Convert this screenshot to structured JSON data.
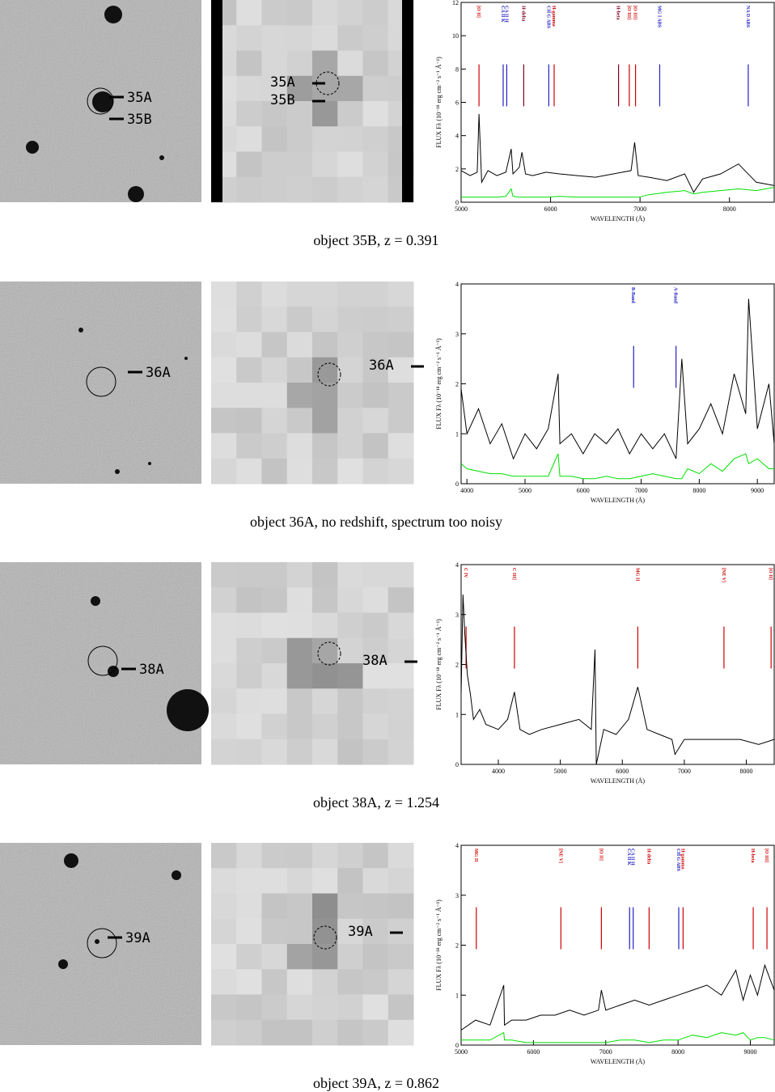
{
  "panels": [
    {
      "caption": "object 35B, z = 0.391",
      "finder_labels": [
        "35A",
        "35B"
      ],
      "zoom_labels": [
        "35A",
        "35B"
      ],
      "spectrum": {
        "xlabel": "WAVELENGTH (Å)",
        "ylabel": "FLUX Fλ (10⁻¹⁸ erg cm⁻² s⁻¹ Å⁻¹)",
        "xlim": [
          5000,
          8500
        ],
        "ylim": [
          0,
          12
        ],
        "xticks": [
          5000,
          6000,
          7000,
          8000
        ],
        "yticks": [
          0,
          2,
          4,
          6,
          8,
          10,
          12
        ],
        "lines": [
          {
            "label": "[O II]",
            "wavelength": 5200,
            "color": "#d00000"
          },
          {
            "label": "CA II K",
            "wavelength": 5470,
            "color": "#2020c8"
          },
          {
            "label": "CA II H",
            "wavelength": 5510,
            "color": "#2020c8"
          },
          {
            "label": "H-delta",
            "wavelength": 5700,
            "color": "#800020"
          },
          {
            "label": "CH G ABS",
            "wavelength": 5980,
            "color": "#2020c8"
          },
          {
            "label": "H-gamma",
            "wavelength": 6040,
            "color": "#d00000"
          },
          {
            "label": "H-beta",
            "wavelength": 6760,
            "color": "#800020"
          },
          {
            "label": "[O III]",
            "wavelength": 6880,
            "color": "#d00000"
          },
          {
            "label": "[O III]",
            "wavelength": 6950,
            "color": "#d00000"
          },
          {
            "label": "MG I ABS",
            "wavelength": 7220,
            "color": "#2020c8"
          },
          {
            "label": "NA D ABS",
            "wavelength": 8210,
            "color": "#2020c8"
          }
        ],
        "x": [
          5000,
          5100,
          5180,
          5200,
          5230,
          5300,
          5400,
          5500,
          5560,
          5580,
          5650,
          5680,
          5720,
          5800,
          5950,
          6100,
          6300,
          6500,
          6700,
          6900,
          6940,
          6980,
          7100,
          7300,
          7500,
          7600,
          7700,
          7900,
          8100,
          8300,
          8500
        ],
        "flux": {
          "color": "#000000",
          "values": [
            1.9,
            1.6,
            1.8,
            5.3,
            1.2,
            1.9,
            1.6,
            1.8,
            3.2,
            1.7,
            2.1,
            3.0,
            1.7,
            1.6,
            1.8,
            1.7,
            1.6,
            1.5,
            1.7,
            1.9,
            3.6,
            1.6,
            1.5,
            1.3,
            1.7,
            0.6,
            1.4,
            1.7,
            2.3,
            1.2,
            1.0
          ]
        },
        "sky": {
          "color": "#00e000",
          "values": [
            0.3,
            0.3,
            0.3,
            0.3,
            0.3,
            0.3,
            0.3,
            0.35,
            0.8,
            0.35,
            0.3,
            0.3,
            0.3,
            0.3,
            0.3,
            0.35,
            0.3,
            0.3,
            0.3,
            0.3,
            0.3,
            0.3,
            0.45,
            0.6,
            0.7,
            0.5,
            0.6,
            0.7,
            0.8,
            0.7,
            0.9
          ]
        }
      }
    },
    {
      "caption": "object 36A, no redshift, spectrum too noisy",
      "finder_labels": [
        "36A"
      ],
      "zoom_labels": [
        "36A"
      ],
      "spectrum": {
        "xlabel": "WAVELENGTH (Å)",
        "ylabel": "FLUX Fλ (10⁻¹⁸ erg cm⁻² s⁻¹ Å⁻¹)",
        "xlim": [
          3900,
          9290
        ],
        "ylim": [
          0,
          4
        ],
        "xticks": [
          4000,
          5000,
          6000,
          7000,
          8000,
          9000
        ],
        "yticks": [
          0,
          1,
          2,
          3,
          4
        ],
        "lines": [
          {
            "label": "B-Band",
            "wavelength": 6870,
            "color": "#2020c8"
          },
          {
            "label": "A-Band",
            "wavelength": 7600,
            "color": "#2020c8"
          }
        ],
        "x": [
          3900,
          4000,
          4200,
          4400,
          4600,
          4800,
          5000,
          5200,
          5400,
          5570,
          5600,
          5800,
          6000,
          6200,
          6400,
          6600,
          6800,
          7000,
          7200,
          7400,
          7600,
          7700,
          7800,
          8000,
          8200,
          8400,
          8600,
          8800,
          8850,
          9000,
          9200,
          9290
        ],
        "flux": {
          "color": "#000000",
          "values": [
            1.9,
            1.0,
            1.5,
            0.8,
            1.2,
            0.5,
            1.0,
            0.7,
            1.1,
            2.2,
            0.8,
            1.0,
            0.6,
            1.0,
            0.8,
            1.1,
            0.6,
            1.0,
            0.7,
            1.0,
            0.5,
            2.5,
            0.8,
            1.1,
            1.6,
            1.0,
            2.2,
            1.4,
            3.7,
            1.1,
            2.0,
            0.8
          ]
        },
        "sky": {
          "color": "#00e000",
          "values": [
            0.4,
            0.3,
            0.25,
            0.2,
            0.2,
            0.15,
            0.15,
            0.15,
            0.15,
            0.6,
            0.15,
            0.15,
            0.1,
            0.1,
            0.15,
            0.1,
            0.1,
            0.15,
            0.2,
            0.15,
            0.1,
            0.1,
            0.3,
            0.2,
            0.4,
            0.25,
            0.5,
            0.6,
            0.4,
            0.5,
            0.3,
            0.3
          ]
        }
      }
    },
    {
      "caption": "object 38A, z = 1.254",
      "finder_labels": [
        "38A"
      ],
      "zoom_labels": [
        "38A"
      ],
      "spectrum": {
        "xlabel": "WAVELENGTH (Å)",
        "ylabel": "FLUX Fλ (10⁻¹⁸ erg cm⁻² s⁻¹ Å⁻¹)",
        "xlim": [
          3400,
          8450
        ],
        "ylim": [
          0,
          4
        ],
        "xticks": [
          4000,
          5000,
          6000,
          7000,
          8000
        ],
        "yticks": [
          0,
          1,
          2,
          3,
          4
        ],
        "lines": [
          {
            "label": "C IV",
            "wavelength": 3480,
            "color": "#d00000"
          },
          {
            "label": "C III]",
            "wavelength": 4260,
            "color": "#d00000"
          },
          {
            "label": "MG II",
            "wavelength": 6250,
            "color": "#d00000"
          },
          {
            "label": "[NE V]",
            "wavelength": 7640,
            "color": "#d00000"
          },
          {
            "label": "[O II]",
            "wavelength": 8400,
            "color": "#d00000"
          }
        ],
        "x": [
          3400,
          3430,
          3460,
          3500,
          3550,
          3600,
          3700,
          3800,
          4000,
          4150,
          4260,
          4350,
          4500,
          4700,
          5000,
          5300,
          5500,
          5560,
          5580,
          5700,
          5900,
          6100,
          6250,
          6400,
          6600,
          6800,
          6850,
          7000,
          7300,
          7600,
          7900,
          8200,
          8450
        ],
        "flux": {
          "color": "#000000",
          "values": [
            1.4,
            3.4,
            2.6,
            1.8,
            1.4,
            0.9,
            1.1,
            0.8,
            0.7,
            0.9,
            1.45,
            0.7,
            0.6,
            0.7,
            0.8,
            0.9,
            0.7,
            2.3,
            0.0,
            0.7,
            0.6,
            0.9,
            1.55,
            0.7,
            0.6,
            0.5,
            0.2,
            0.5,
            0.5,
            0.5,
            0.5,
            0.4,
            0.5
          ]
        }
      }
    },
    {
      "caption": "object 39A, z = 0.862",
      "finder_labels": [
        "39A"
      ],
      "zoom_labels": [
        "39A"
      ],
      "spectrum": {
        "xlabel": "WAVELENGTH (Å)",
        "ylabel": "FLUX Fλ (10⁻¹⁸ erg cm⁻² s⁻¹ Å⁻¹)",
        "xlim": [
          5000,
          9330
        ],
        "ylim": [
          0,
          4
        ],
        "xticks": [
          5000,
          6000,
          7000,
          8000,
          9000
        ],
        "yticks": [
          0,
          1,
          2,
          3,
          4
        ],
        "lines": [
          {
            "label": "MG II",
            "wavelength": 5210,
            "color": "#d00000"
          },
          {
            "label": "[NE V]",
            "wavelength": 6380,
            "color": "#d00000"
          },
          {
            "label": "[O II]",
            "wavelength": 6940,
            "color": "#d00000"
          },
          {
            "label": "CA II K",
            "wavelength": 7330,
            "color": "#2020c8"
          },
          {
            "label": "CA II H",
            "wavelength": 7380,
            "color": "#2020c8"
          },
          {
            "label": "H-delta",
            "wavelength": 7600,
            "color": "#d00000"
          },
          {
            "label": "CH G ABS",
            "wavelength": 8010,
            "color": "#2020c8"
          },
          {
            "label": "H-gamma",
            "wavelength": 8070,
            "color": "#d00000"
          },
          {
            "label": "H-beta",
            "wavelength": 9040,
            "color": "#d00000"
          },
          {
            "label": "[O III]",
            "wavelength": 9230,
            "color": "#d00000"
          }
        ],
        "x": [
          5000,
          5200,
          5400,
          5590,
          5600,
          5700,
          5900,
          6100,
          6300,
          6500,
          6700,
          6900,
          6940,
          7000,
          7200,
          7400,
          7600,
          7800,
          8000,
          8200,
          8400,
          8600,
          8800,
          8900,
          9000,
          9100,
          9200,
          9330
        ],
        "flux": {
          "color": "#000000",
          "values": [
            0.3,
            0.5,
            0.4,
            1.2,
            0.4,
            0.5,
            0.5,
            0.6,
            0.6,
            0.7,
            0.6,
            0.7,
            1.1,
            0.7,
            0.8,
            0.9,
            0.8,
            0.9,
            1.0,
            1.1,
            1.2,
            1.0,
            1.5,
            0.9,
            1.4,
            1.0,
            1.6,
            1.1
          ]
        },
        "sky": {
          "color": "#00e000",
          "values": [
            0.1,
            0.1,
            0.1,
            0.25,
            0.1,
            0.1,
            0.05,
            0.05,
            0.05,
            0.05,
            0.05,
            0.05,
            0.05,
            0.05,
            0.1,
            0.1,
            0.05,
            0.1,
            0.1,
            0.2,
            0.15,
            0.25,
            0.2,
            0.25,
            0.1,
            0.15,
            0.15,
            0.1
          ]
        }
      }
    }
  ]
}
